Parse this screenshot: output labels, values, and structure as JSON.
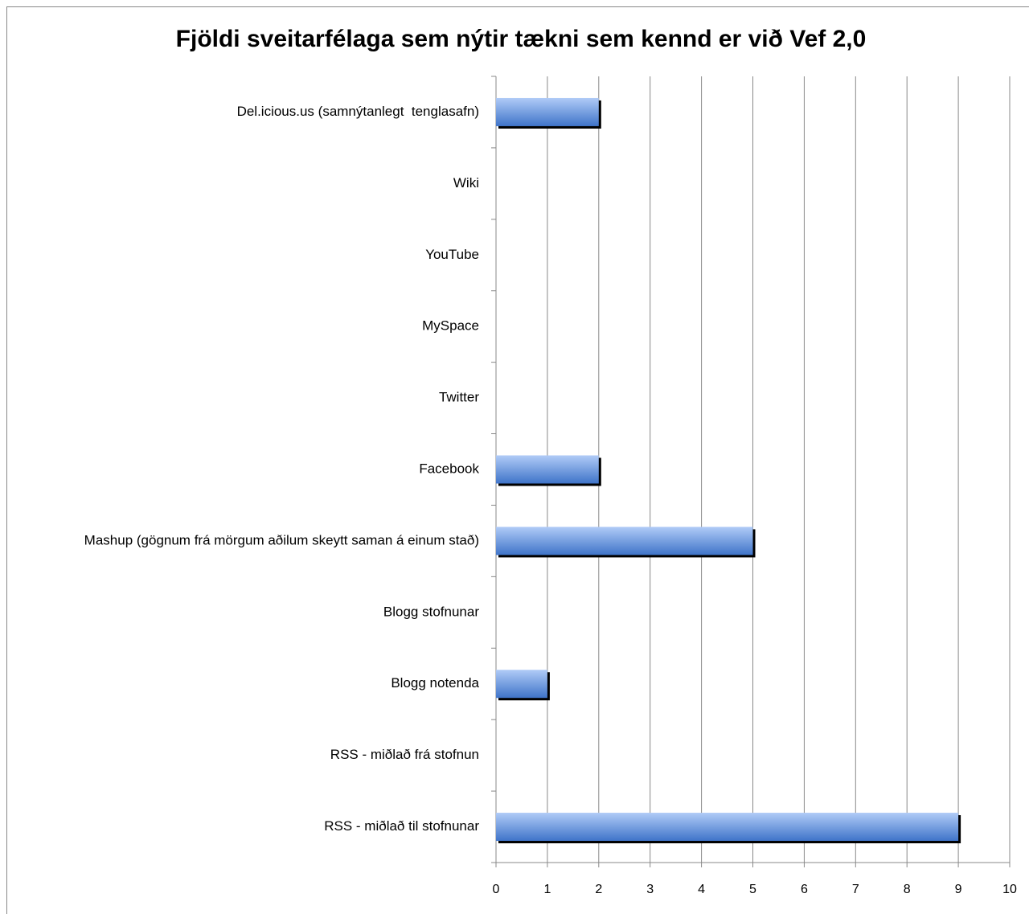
{
  "chart_data": {
    "type": "bar",
    "orientation": "horizontal",
    "title": "Fjöldi sveitarfélaga sem nýtir tækni sem kennd er við Vef 2,0",
    "categories": [
      "Del.icious.us (samnýtanlegt  tenglasafn)",
      "Wiki",
      "YouTube",
      "MySpace",
      "Twitter",
      "Facebook",
      "Mashup (gögnum frá mörgum aðilum skeytt saman á einum stað)",
      "Blogg stofnunar",
      "Blogg notenda",
      "RSS - miðlað frá stofnun",
      "RSS - miðlað til stofnunar"
    ],
    "values": [
      2,
      0,
      0,
      0,
      0,
      2,
      5,
      0,
      1,
      0,
      9
    ],
    "color": "#3f74c9",
    "xlim": [
      0,
      10
    ],
    "xticks": [
      0,
      1,
      2,
      3,
      4,
      5,
      6,
      7,
      8,
      9,
      10
    ],
    "grid": true
  }
}
